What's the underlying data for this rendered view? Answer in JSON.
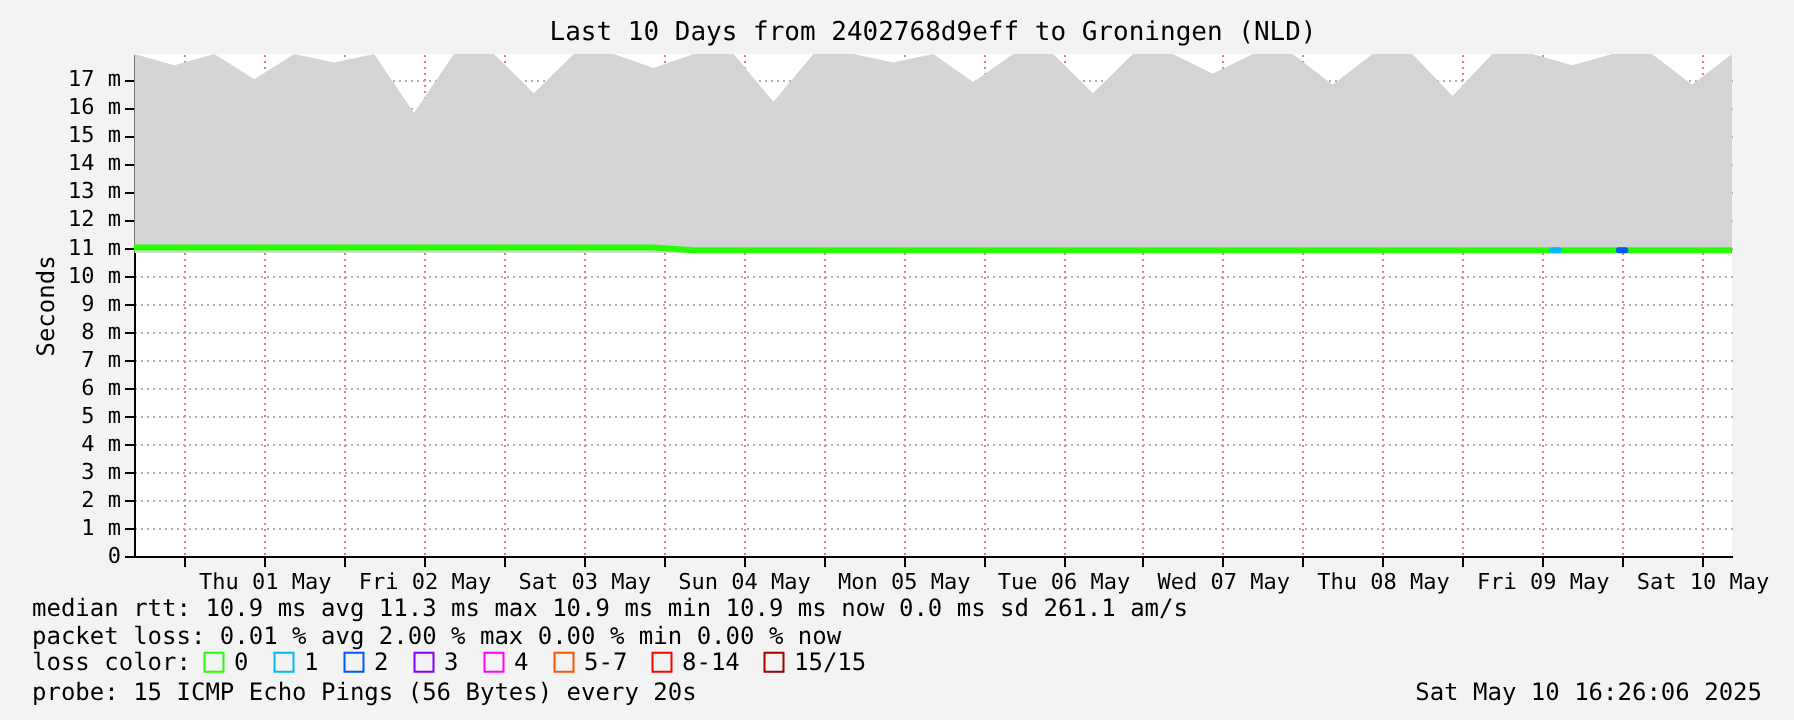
{
  "chart_data": {
    "type": "line",
    "title": "Last 10 Days from 2402768d9eff to Groningen (NLD)",
    "ylabel": "Seconds",
    "x": [
      "2025-04-30T16:30",
      "2025-04-30T22:30",
      "2025-05-01T04:30",
      "2025-05-01T10:30",
      "2025-05-01T16:30",
      "2025-05-01T22:30",
      "2025-05-02T04:30",
      "2025-05-02T10:30",
      "2025-05-02T16:30",
      "2025-05-02T22:30",
      "2025-05-03T04:30",
      "2025-05-03T10:30",
      "2025-05-03T16:30",
      "2025-05-03T22:30",
      "2025-05-04T04:30",
      "2025-05-04T10:30",
      "2025-05-04T16:30",
      "2025-05-04T22:30",
      "2025-05-05T04:30",
      "2025-05-05T10:30",
      "2025-05-05T16:30",
      "2025-05-05T22:30",
      "2025-05-06T04:30",
      "2025-05-06T10:30",
      "2025-05-06T16:30",
      "2025-05-06T22:30",
      "2025-05-07T04:30",
      "2025-05-07T10:30",
      "2025-05-07T16:30",
      "2025-05-07T22:30",
      "2025-05-08T04:30",
      "2025-05-08T10:30",
      "2025-05-08T16:30",
      "2025-05-08T22:30",
      "2025-05-09T04:30",
      "2025-05-09T10:30",
      "2025-05-09T16:30",
      "2025-05-09T22:30",
      "2025-05-10T04:30",
      "2025-05-10T10:30",
      "2025-05-10T16:30"
    ],
    "series": [
      {
        "name": "0",
        "color": "#26ff00",
        "values": [
          11.0,
          11.0,
          11.0,
          11.0,
          11.0,
          11.0,
          11.0,
          11.0,
          11.0,
          11.0,
          11.0,
          11.0,
          11.0,
          11.0,
          10.9,
          10.9,
          10.9,
          10.9,
          10.9,
          10.9,
          10.9,
          10.9,
          10.9,
          10.9,
          10.9,
          10.9,
          10.9,
          10.9,
          10.9,
          10.9,
          10.9,
          10.9,
          10.9,
          10.9,
          10.9,
          10.9,
          10.9,
          10.9,
          10.9,
          10.9,
          10.9
        ],
        "lower": [
          10.8,
          10.8,
          10.8,
          10.8,
          10.8,
          10.8,
          10.8,
          10.8,
          10.8,
          10.8,
          10.8,
          10.8,
          10.8,
          10.8,
          10.8,
          10.8,
          10.8,
          10.8,
          10.8,
          10.8,
          10.8,
          10.8,
          10.8,
          10.8,
          10.8,
          10.8,
          10.8,
          10.8,
          10.8,
          10.8,
          10.8,
          10.8,
          10.8,
          10.8,
          10.8,
          10.8,
          10.8,
          10.8,
          10.8,
          10.8,
          10.8
        ],
        "upper": [
          17.9,
          17.5,
          17.9,
          17.0,
          17.9,
          17.6,
          17.9,
          15.8,
          17.9,
          17.9,
          16.5,
          17.9,
          17.9,
          17.4,
          17.9,
          17.9,
          16.2,
          17.9,
          17.9,
          17.6,
          17.9,
          16.9,
          17.9,
          17.9,
          16.5,
          17.9,
          17.9,
          17.2,
          17.9,
          17.9,
          16.8,
          17.9,
          17.9,
          16.4,
          17.9,
          17.9,
          17.5,
          17.9,
          17.9,
          16.8,
          17.9
        ]
      },
      {
        "name": "1",
        "color": "#00b8ff",
        "x": [
          "2025-05-09T13:30",
          "2025-05-09T14:30"
        ],
        "values": [
          10.9,
          10.9
        ]
      },
      {
        "name": "2",
        "color": "#0059ff",
        "x": [
          "2025-05-09T23:30",
          "2025-05-10T00:30"
        ],
        "values": [
          10.9,
          10.9
        ]
      },
      {
        "name": "3",
        "color": "#7e00ff",
        "values": [
          null,
          null,
          null,
          null,
          null,
          null,
          null,
          null,
          null,
          null,
          null,
          null,
          null,
          null,
          null,
          null,
          null,
          null,
          null,
          null,
          null,
          null,
          null,
          null,
          null,
          null,
          null,
          null,
          null,
          null,
          null,
          null,
          null,
          null,
          null,
          null,
          null,
          null,
          null,
          null,
          null
        ]
      },
      {
        "name": "4",
        "color": "#ff00ff",
        "values": [
          null,
          null,
          null,
          null,
          null,
          null,
          null,
          null,
          null,
          null,
          null,
          null,
          null,
          null,
          null,
          null,
          null,
          null,
          null,
          null,
          null,
          null,
          null,
          null,
          null,
          null,
          null,
          null,
          null,
          null,
          null,
          null,
          null,
          null,
          null,
          null,
          null,
          null,
          null,
          null,
          null
        ]
      },
      {
        "name": "5-7",
        "color": "#ff5500",
        "values": [
          null,
          null,
          null,
          null,
          null,
          null,
          null,
          null,
          null,
          null,
          null,
          null,
          null,
          null,
          null,
          null,
          null,
          null,
          null,
          null,
          null,
          null,
          null,
          null,
          null,
          null,
          null,
          null,
          null,
          null,
          null,
          null,
          null,
          null,
          null,
          null,
          null,
          null,
          null,
          null,
          null
        ]
      },
      {
        "name": "8-14",
        "color": "#ff0000",
        "values": [
          null,
          null,
          null,
          null,
          null,
          null,
          null,
          null,
          null,
          null,
          null,
          null,
          null,
          null,
          null,
          null,
          null,
          null,
          null,
          null,
          null,
          null,
          null,
          null,
          null,
          null,
          null,
          null,
          null,
          null,
          null,
          null,
          null,
          null,
          null,
          null,
          null,
          null,
          null,
          null,
          null
        ]
      },
      {
        "name": "15/15",
        "color": "#a10000",
        "values": [
          null,
          null,
          null,
          null,
          null,
          null,
          null,
          null,
          null,
          null,
          null,
          null,
          null,
          null,
          null,
          null,
          null,
          null,
          null,
          null,
          null,
          null,
          null,
          null,
          null,
          null,
          null,
          null,
          null,
          null,
          null,
          null,
          null,
          null,
          null,
          null,
          null,
          null,
          null,
          null,
          null
        ]
      }
    ],
    "legend_title": "loss color:",
    "legend": "bottom left",
    "grid": true,
    "line_style": "solid",
    "marker": "none",
    "xlim": [
      "2025-04-30T16:26",
      "2025-05-10T16:30"
    ],
    "xticks": [
      {
        "value": "2025-05-01T00:00",
        "label": null
      },
      {
        "value": "2025-05-01T12:00",
        "label": "Thu 01 May"
      },
      {
        "value": "2025-05-02T00:00",
        "label": null
      },
      {
        "value": "2025-05-02T12:00",
        "label": "Fri 02 May"
      },
      {
        "value": "2025-05-03T00:00",
        "label": null
      },
      {
        "value": "2025-05-03T12:00",
        "label": "Sat 03 May"
      },
      {
        "value": "2025-05-04T00:00",
        "label": null
      },
      {
        "value": "2025-05-04T12:00",
        "label": "Sun 04 May"
      },
      {
        "value": "2025-05-05T00:00",
        "label": null
      },
      {
        "value": "2025-05-05T12:00",
        "label": "Mon 05 May"
      },
      {
        "value": "2025-05-06T00:00",
        "label": null
      },
      {
        "value": "2025-05-06T12:00",
        "label": "Tue 06 May"
      },
      {
        "value": "2025-05-07T00:00",
        "label": null
      },
      {
        "value": "2025-05-07T12:00",
        "label": "Wed 07 May"
      },
      {
        "value": "2025-05-08T00:00",
        "label": null
      },
      {
        "value": "2025-05-08T12:00",
        "label": "Thu 08 May"
      },
      {
        "value": "2025-05-09T00:00",
        "label": null
      },
      {
        "value": "2025-05-09T12:00",
        "label": "Fri 09 May"
      },
      {
        "value": "2025-05-10T00:00",
        "label": null
      },
      {
        "value": "2025-05-10T12:00",
        "label": "Sat 10 May"
      }
    ],
    "ylim": [
      0,
      17.9
    ],
    "yticks": [
      0,
      {
        "value": 1,
        "label": "1 m"
      },
      {
        "value": 2,
        "label": "2 m"
      },
      {
        "value": 3,
        "label": "3 m"
      },
      {
        "value": 4,
        "label": "4 m"
      },
      {
        "value": 5,
        "label": "5 m"
      },
      {
        "value": 6,
        "label": "6 m"
      },
      {
        "value": 7,
        "label": "7 m"
      },
      {
        "value": 8,
        "label": "8 m"
      },
      {
        "value": 9,
        "label": "9 m"
      },
      {
        "value": 10,
        "label": "10 m"
      },
      {
        "value": 11,
        "label": "11 m"
      },
      {
        "value": 12,
        "label": "12 m"
      },
      {
        "value": 13,
        "label": "13 m"
      },
      {
        "value": 14,
        "label": "14 m"
      },
      {
        "value": 15,
        "label": "15 m"
      },
      {
        "value": 16,
        "label": "16 m"
      },
      {
        "value": 17,
        "label": "17 m"
      }
    ],
    "annotations": [
      "median rtt:  10.9 ms avg  11.3 ms max  10.9 ms min  10.9 ms now  0.0 ms sd  261.1   am/s",
      "packet loss: 0.01 % avg  2.00 % max  0.00 % min  0.00 % now",
      "probe:       15 ICMP Echo Pings (56 Bytes) every 20s",
      "Sat May 10 16:26:06 2025"
    ]
  }
}
